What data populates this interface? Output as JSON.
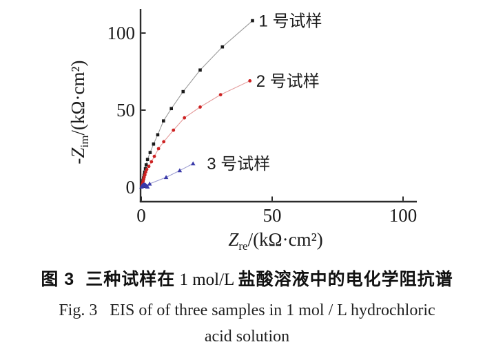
{
  "chart_data": {
    "type": "scatter",
    "title": "",
    "xlabel_parts": {
      "var": "Z",
      "sub": "re",
      "rest": "/(kΩ·cm²)"
    },
    "ylabel_parts": {
      "prefix": "-",
      "var": "Z",
      "sub": "im",
      "rest": "/(kΩ·cm²)"
    },
    "x_ticks": [
      0,
      50,
      100
    ],
    "y_ticks": [
      0,
      50,
      100
    ],
    "xlim": [
      -0.5,
      105.5
    ],
    "ylim": [
      -9.4,
      116.5
    ],
    "grid": false,
    "legend_position": "next-to-last-point",
    "axis_color": "#2b2b2b",
    "series": [
      {
        "name": "1 号试样",
        "marker": "square",
        "marker_color": "#1b1b1b",
        "line_color": "#9b9b9b",
        "points": [
          [
            0.25,
            0.8
          ],
          [
            0.4,
            2
          ],
          [
            0.55,
            3.2
          ],
          [
            0.7,
            4.5
          ],
          [
            0.9,
            6
          ],
          [
            1.1,
            7.8
          ],
          [
            1.3,
            9.8
          ],
          [
            1.6,
            12
          ],
          [
            1.9,
            14.5
          ],
          [
            2.4,
            18
          ],
          [
            3.4,
            22.5
          ],
          [
            4.7,
            28
          ],
          [
            6.3,
            34
          ],
          [
            8.5,
            43
          ],
          [
            11.5,
            51
          ],
          [
            16,
            62
          ],
          [
            22.5,
            76
          ],
          [
            31,
            91
          ],
          [
            42.5,
            108
          ]
        ]
      },
      {
        "name": "2 号试样",
        "marker": "circle",
        "marker_color": "#cd2222",
        "line_color": "#e49b9b",
        "points": [
          [
            0.2,
            0.5
          ],
          [
            0.35,
            1.4
          ],
          [
            0.5,
            2.4
          ],
          [
            0.7,
            3.6
          ],
          [
            0.9,
            5
          ],
          [
            1.1,
            6.4
          ],
          [
            1.4,
            8
          ],
          [
            1.7,
            9.8
          ],
          [
            2.1,
            11.5
          ],
          [
            2.9,
            13.5
          ],
          [
            3.9,
            16.5
          ],
          [
            5.0,
            20
          ],
          [
            6.6,
            25
          ],
          [
            8.6,
            29.5
          ],
          [
            12.3,
            37
          ],
          [
            16.5,
            45
          ],
          [
            22.5,
            52
          ],
          [
            30.3,
            60
          ],
          [
            41.5,
            69
          ]
        ]
      },
      {
        "name": "3 号试样",
        "marker": "triangle",
        "marker_color": "#3939a9",
        "line_color": "#9d9dd2",
        "points": [
          [
            0.1,
            0.2
          ],
          [
            0.3,
            0.7
          ],
          [
            0.5,
            1.1
          ],
          [
            0.8,
            1.5
          ],
          [
            1.1,
            1.7
          ],
          [
            1.4,
            1.6
          ],
          [
            1.7,
            1.3
          ],
          [
            2.0,
            0.9
          ],
          [
            2.2,
            0.5
          ],
          [
            2.4,
            0.2
          ],
          [
            3.2,
            2.2
          ],
          [
            9.5,
            6.4
          ],
          [
            14.7,
            10.8
          ],
          [
            19.8,
            15.3
          ]
        ]
      }
    ]
  },
  "caption": {
    "cn_prefix": "图 3",
    "cn_part1": "三种试样在",
    "cn_formula": " 1 mol/L ",
    "cn_part2": "盐酸溶液中的电化学阻抗谱",
    "en_line1": "Fig. 3   EIS of of three samples in 1 mol / L hydrochloric",
    "en_line2": "acid solution"
  }
}
